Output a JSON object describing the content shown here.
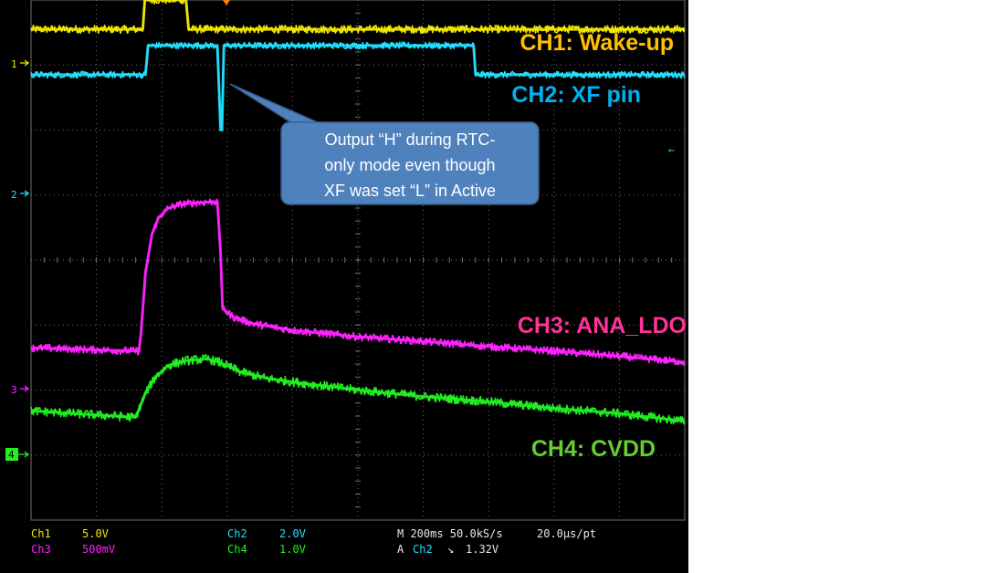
{
  "colors": {
    "ch1": "#f0e800",
    "ch2": "#22e0ff",
    "ch3": "#ff22ff",
    "ch4": "#22ee22",
    "label_ch1": "#ffc000",
    "label_ch2": "#00b0f0",
    "label_ch3": "#ff3399",
    "label_ch4": "#66cc33",
    "callout_fill": "#4f81bd",
    "callout_stroke": "#385d8a",
    "grid": "#6e6e6e",
    "background": "#000000",
    "trigger_marker": "#ff8000"
  },
  "chart_data": {
    "type": "line",
    "title": "",
    "xlabel": "",
    "ylabel": "",
    "grid": true,
    "x_divisions": 10,
    "y_divisions": 8,
    "x_unit": "div",
    "y_unit": "div",
    "xlim": [
      0,
      10
    ],
    "ylim": [
      -4,
      4
    ],
    "series": [
      {
        "name": "CH1: Wake-up",
        "key": "ch1",
        "x": [
          0,
          1.71,
          1.74,
          2.37,
          2.41,
          10
        ],
        "y": [
          3.55,
          3.55,
          4.0,
          4.0,
          3.55,
          3.55
        ],
        "noise": 0.06
      },
      {
        "name": "CH2: XF pin",
        "key": "ch2",
        "x": [
          0,
          1.75,
          1.79,
          2.85,
          2.9,
          2.92,
          2.95,
          3.0,
          6.77,
          6.8,
          10
        ],
        "y": [
          2.85,
          2.85,
          3.3,
          3.3,
          2.0,
          2.0,
          3.3,
          3.3,
          3.3,
          2.85,
          2.85
        ],
        "noise": 0.05
      },
      {
        "name": "CH3: ANA_LDO",
        "key": "ch3",
        "x": [
          0,
          1.65,
          1.68,
          1.75,
          1.85,
          1.95,
          2.1,
          2.3,
          2.5,
          2.85,
          2.9,
          2.93,
          3.1,
          3.4,
          4.0,
          5.0,
          6.0,
          7.0,
          8.0,
          9.0,
          10
        ],
        "y": [
          -1.35,
          -1.4,
          -1.15,
          -0.2,
          0.4,
          0.65,
          0.8,
          0.86,
          0.88,
          0.9,
          0.1,
          -0.75,
          -0.88,
          -0.98,
          -1.08,
          -1.18,
          -1.25,
          -1.33,
          -1.4,
          -1.48,
          -1.57
        ],
        "noise": 0.06
      },
      {
        "name": "CH4: CVDD",
        "key": "ch4",
        "x": [
          0,
          1.6,
          1.65,
          1.75,
          1.9,
          2.1,
          2.35,
          2.7,
          2.9,
          3.2,
          3.6,
          4.2,
          5.0,
          6.0,
          7.0,
          8.0,
          9.0,
          10
        ],
        "y": [
          -2.32,
          -2.42,
          -2.3,
          -2.05,
          -1.8,
          -1.62,
          -1.55,
          -1.52,
          -1.58,
          -1.72,
          -1.82,
          -1.9,
          -2.0,
          -2.1,
          -2.18,
          -2.28,
          -2.36,
          -2.48
        ],
        "noise": 0.07
      }
    ]
  },
  "channel_labels": {
    "ch1": "CH1: Wake-up",
    "ch2": "CH2: XF pin",
    "ch3": "CH3: ANA_LDO",
    "ch4": "CH4: CVDD"
  },
  "callout": {
    "lines": [
      "Output “H” during RTC-",
      "only mode even though",
      "XF was set “L” in Active"
    ]
  },
  "markers": {
    "ch1": "1",
    "ch2": "2",
    "ch3": "3",
    "ch4": "4",
    "right_arrow": "←"
  },
  "readout": {
    "ch1_name": "Ch1",
    "ch1_scale": "5.0V",
    "ch2_name": "Ch2",
    "ch2_scale": "2.0V",
    "ch3_name": "Ch3",
    "ch3_scale": "500mV",
    "ch4_name": "Ch4",
    "ch4_scale": "1.0V",
    "timebase": "M 200ms 50.0kS/s",
    "record": "20.0µs/pt",
    "trigger_prefix": "A",
    "trigger_source": "Ch2",
    "trigger_slope": "↘",
    "trigger_level": "1.32V"
  }
}
